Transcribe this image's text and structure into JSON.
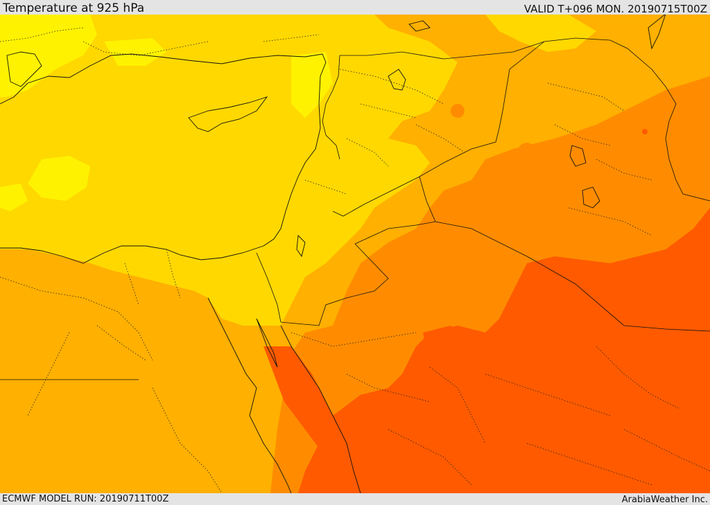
{
  "header": {
    "title": "Temperature at 925 hPa",
    "valid": "VALID T+096 MON. 20190715T00Z"
  },
  "footer": {
    "model_run": "ECMWF MODEL RUN: 20190711T00Z",
    "credit": "ArabiaWeather Inc."
  },
  "map": {
    "field": "temperature",
    "level": "925 hPa",
    "palette": {
      "light_yellow": "#fff200",
      "yellow": "#ffd800",
      "light_orange": "#ffb000",
      "orange": "#ff8c00",
      "dark_orange": "#ff5a00"
    }
  }
}
